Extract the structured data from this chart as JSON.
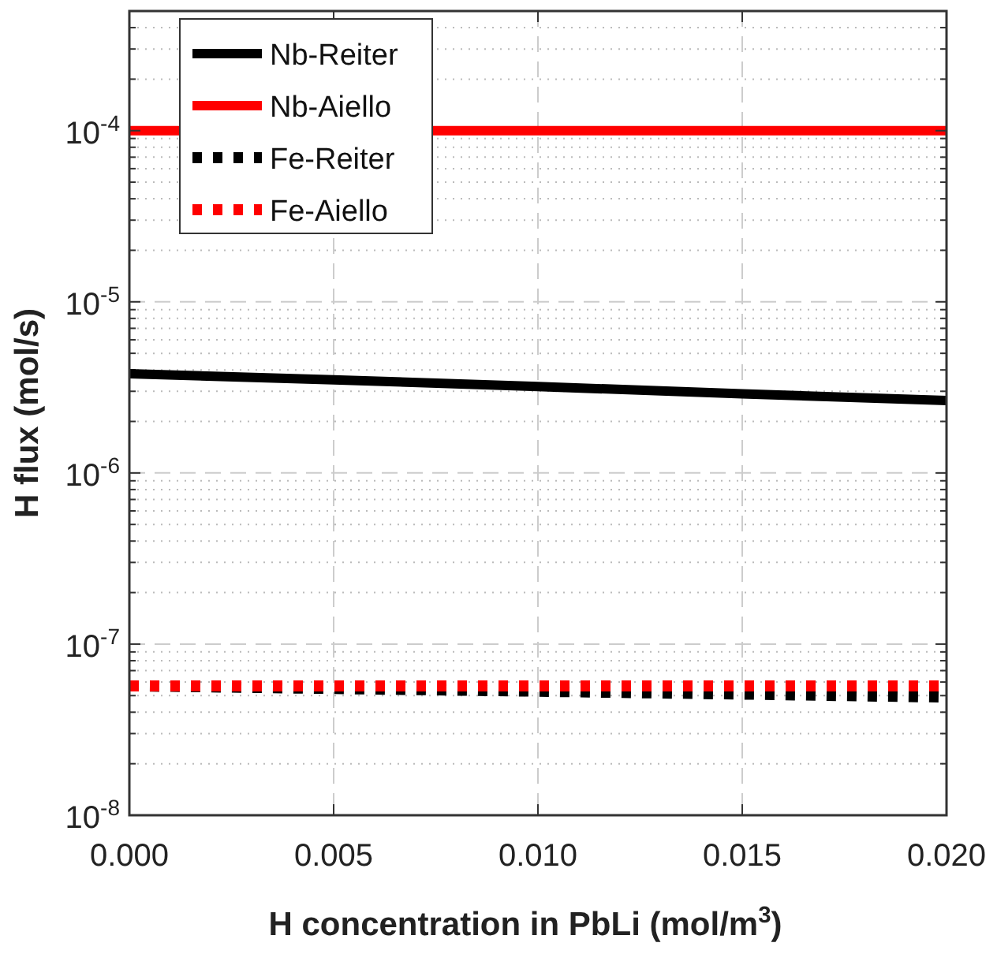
{
  "chart_data": {
    "type": "line",
    "xlabel": "H concentration in PbLi (mol/m$^{3}$)",
    "ylabel": "H flux (mol/s)",
    "x": [
      0,
      0.005,
      0.01,
      0.015,
      0.02
    ],
    "series": [
      {
        "name": "Nb-Reiter",
        "color": "#000000",
        "line_style": "solid",
        "values": [
          3.8e-06,
          3.5e-06,
          3.2e-06,
          2.9e-06,
          2.65e-06
        ]
      },
      {
        "name": "Nb-Aiello",
        "color": "#ff0000",
        "line_style": "solid",
        "values": [
          0.0001,
          null,
          0.0001,
          0.0001,
          0.0001
        ]
      },
      {
        "name": "Fe-Reiter",
        "color": "#000000",
        "line_style": "dotted",
        "values": [
          5.7e-08,
          5.5e-08,
          5.3e-08,
          5.1e-08,
          4.9e-08
        ]
      },
      {
        "name": "Fe-Aiello",
        "color": "#ff0000",
        "line_style": "dotted",
        "values": [
          5.7e-08,
          5.7e-08,
          5.7e-08,
          5.7e-08,
          5.7e-08
        ]
      }
    ],
    "xlim": [
      0,
      0.02
    ],
    "xticks": [
      {
        "value": 0,
        "label": "0.000"
      },
      {
        "value": 0.005,
        "label": "0.005"
      },
      {
        "value": 0.01,
        "label": "0.010"
      },
      {
        "value": 0.015,
        "label": "0.015"
      },
      {
        "value": 0.02,
        "label": "0.020"
      }
    ],
    "ylim": [
      1e-08,
      0.0005
    ],
    "yticks": [
      {
        "value": 1e-08,
        "label": "10$^{-8}$"
      },
      {
        "value": 1e-07,
        "label": "10$^{-7}$"
      },
      {
        "value": 1e-06,
        "label": "10$^{-6}$"
      },
      {
        "value": 1e-05,
        "label": "10$^{-5}$"
      },
      {
        "value": 0.0001,
        "label": "10$^{-4}$"
      }
    ],
    "log": "y",
    "grid": true,
    "legend": "top left"
  }
}
